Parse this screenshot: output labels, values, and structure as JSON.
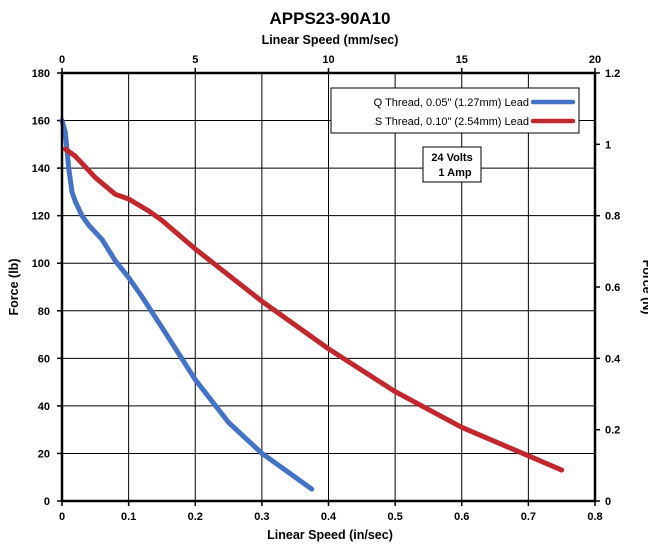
{
  "chart_data": {
    "type": "line",
    "title": "APPS23-90A10",
    "xlabel": "Linear Speed (in/sec)",
    "x2label": "Linear Speed (mm/sec)",
    "ylabel": "Force (lb)",
    "y2label": "Force (N)",
    "xlim": [
      0,
      0.8
    ],
    "ylim": [
      0,
      180
    ],
    "x2lim": [
      0,
      20
    ],
    "y2lim": [
      0,
      1.2
    ],
    "x_ticks": [
      "0",
      "0.1",
      "0.2",
      "0.3",
      "0.4",
      "0.5",
      "0.6",
      "0.7",
      "0.8"
    ],
    "y_ticks": [
      "0",
      "20",
      "40",
      "60",
      "80",
      "100",
      "120",
      "140",
      "160",
      "180"
    ],
    "x2_ticks": [
      "0",
      "5",
      "10",
      "15",
      "20"
    ],
    "y2_ticks": [
      "0",
      "0.2",
      "0.4",
      "0.6",
      "0.8",
      "1",
      "1.2"
    ],
    "grid": true,
    "legend_position": "top-right",
    "annotation": {
      "line1": "24 Volts",
      "line2": "1 Amp"
    },
    "series": [
      {
        "name": "Q Thread, 0.05\" (1.27mm) Lead",
        "color": "#4472C4",
        "x": [
          0.0,
          0.005,
          0.01,
          0.015,
          0.02,
          0.03,
          0.04,
          0.06,
          0.08,
          0.1,
          0.12,
          0.15,
          0.2,
          0.25,
          0.3,
          0.35,
          0.375
        ],
        "y": [
          160,
          155,
          140,
          130,
          126,
          120,
          116,
          110,
          101,
          94,
          86,
          73,
          51,
          33,
          20,
          10,
          5
        ]
      },
      {
        "name": "S Thread, 0.10\" (2.54mm) Lead",
        "color": "#C0282D",
        "x": [
          0.005,
          0.02,
          0.05,
          0.08,
          0.1,
          0.13,
          0.15,
          0.2,
          0.3,
          0.4,
          0.5,
          0.6,
          0.7,
          0.75
        ],
        "y": [
          148,
          145,
          136,
          129,
          127,
          122,
          118,
          106,
          84,
          64,
          46,
          31,
          19,
          13
        ]
      }
    ]
  }
}
